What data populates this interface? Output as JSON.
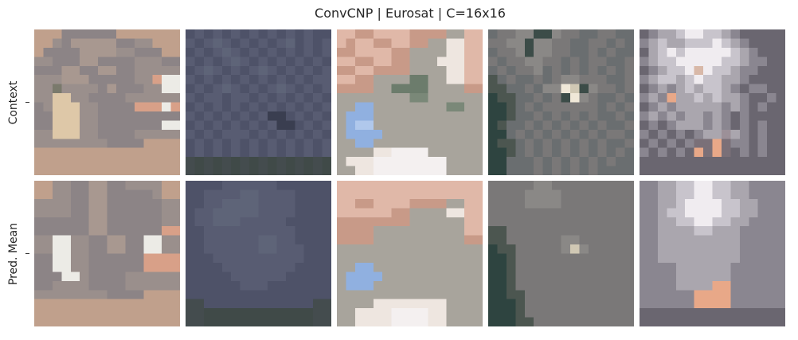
{
  "chart_data": {
    "type": "heatmap",
    "title": "ConvCNP | Eurosat | C=16x16",
    "rows": [
      "Context",
      "Pred. Mean"
    ],
    "columns": 5,
    "grid_resolution": [
      16,
      16
    ],
    "grid": false,
    "panels": [
      {
        "palette": [
          "#d8a890",
          "#c0a08c",
          "#9a8f8c",
          "#8c8486",
          "#a89890",
          "#e8e0d0",
          "#dec8a8",
          "#7a7a6c",
          "#d8a088",
          "#ecebe6"
        ],
        "context": [
          "1113333331111111",
          "1123444443322111",
          "1333344442233311",
          "2233344333322233",
          "3334433443322222",
          "2224443333322899",
          "2272222343332299",
          "2266223333222222",
          "3266622333388898",
          "3366622333333333",
          "3366622333333399",
          "2266622333322222",
          "2222222233331111",
          "1111111111111111",
          "1111111111111111",
          "1111111111111111"
        ],
        "mean": [
          "1122334433222211",
          "1122334433333211",
          "2222334433333322",
          "2222334433333322",
          "3333334433333322",
          "3333334433333388",
          "2299223344339922",
          "2299223344339922",
          "3399223333338888",
          "3399223333338888",
          "3339923333222222",
          "3322223333222222",
          "2222222233331111",
          "1111111111111111",
          "1111111111111111",
          "1111111111111111"
        ]
      },
      {
        "palette": [
          "#46485c",
          "#4e5268",
          "#585c72",
          "#5e6478",
          "#3a3e50",
          "#6a6e80",
          "#444c4e",
          "#404a48",
          "#565a6e",
          "#3c4448"
        ],
        "context": [
          "1212121212121211",
          "2123212121231212",
          "1212321212121212",
          "2121232121212121",
          "1232121232121212",
          "2121212121212122",
          "1212321212321212",
          "2122122121212121",
          "1212121212121212",
          "2121212124412121",
          "1212121212441212",
          "2121222121212121",
          "1212121212121212",
          "1212121212121212",
          "6767676767676767",
          "6767676767676767"
        ],
        "mean": [
          "1111222222111111",
          "1122223322221111",
          "1122333322221111",
          "1223333322221111",
          "1223332222211111",
          "1122222222221111",
          "1122222233221111",
          "1122222233222111",
          "1112222222222111",
          "1111222222221111",
          "1111122222211111",
          "1111112221111111",
          "1111111111111111",
          "6611111111111166",
          "6677777777777766",
          "6677777777777766"
        ]
      },
      {
        "palette": [
          "#d4a08c",
          "#e0b8a8",
          "#c89a88",
          "#a8a49c",
          "#eee6e0",
          "#90b0e0",
          "#b0c8ec",
          "#6c7c6c",
          "#7a8878",
          "#f4f0f0"
        ],
        "context": [
          "1122111122223311",
          "1211221122334411",
          "2211112233334411",
          "1122112233344411",
          "2211222233334411",
          "1122333377334411",
          "2222337777333322",
          "3333333388333333",
          "3355333333338833",
          "3555333333333333",
          "3566333333333333",
          "3555533333333333",
          "3355333333333333",
          "3333449999333333",
          "3444999999993333",
          "3344999999993333"
        ],
        "mean": [
          "1111111111111111",
          "1111111111111111",
          "1122111122223311",
          "1111112233334411",
          "2222222233333311",
          "2222333333333311",
          "2222333333333322",
          "3333333333333333",
          "3333333333333333",
          "3355333333333333",
          "3555533333333333",
          "3555333333333333",
          "3333333333333333",
          "3333444444443333",
          "3344449999443333",
          "3344449999443333"
        ]
      },
      {
        "palette": [
          "#5e6466",
          "#6a6e70",
          "#7a7878",
          "#8a8886",
          "#3c4c48",
          "#f0e8d8",
          "#d0c8b4",
          "#2e4440",
          "#4c5650",
          "#9a9490"
        ],
        "context": [
          "1223344322112211",
          "2233433221122121",
          "1223433221121211",
          "2122332212122112",
          "1212231212121212",
          "8121121233222112",
          "8811213356432212",
          "7881121245321121",
          "7781212222221212",
          "7781121212121121",
          "7811212121212112",
          "7712121212121221",
          "7881212121212112",
          "7781212121212121",
          "7711121212121211",
          "7711121212121111"
        ],
        "mean": [
          "2222233222222222",
          "2222333322222222",
          "2222333322222222",
          "2222222222222222",
          "2222222222222222",
          "8822222222222222",
          "8822222233222222",
          "7882222236322222",
          "7782222222222222",
          "7782222222222222",
          "7782222222222222",
          "7782222222222222",
          "7788222222222222",
          "7778222222222222",
          "7778222222222222",
          "7778822222222222"
        ]
      },
      {
        "palette": [
          "#4c4a54",
          "#6a6670",
          "#8a8690",
          "#aaa6ae",
          "#c8c4cc",
          "#f0ecf0",
          "#d8b8a8",
          "#e8a888",
          "#7a7078",
          "#9c9098"
        ],
        "context": [
          "1233455443211111",
          "2343344454321111",
          "1345455555432111",
          "2344555554432211",
          "1234456544322111",
          "2344345443321111",
          "1232343443212211",
          "2327334343321121",
          "1232333332321211",
          "2323233232121111",
          "1212333232121211",
          "2121212339321211",
          "1212128878221211",
          "2121217878121211",
          "1111111111111111",
          "1111111111111111"
        ],
        "mean": [
          "2233445544332222",
          "2233445544332222",
          "2233455554433222",
          "2234455554433222",
          "2233445544332222",
          "2233334433322222",
          "2233333333322222",
          "2233333333322222",
          "2233333333322222",
          "2222333333222222",
          "2222333333222222",
          "2222333377222222",
          "2222227777222222",
          "2222227777222222",
          "1111111111111111",
          "1111111111111111"
        ]
      }
    ]
  }
}
